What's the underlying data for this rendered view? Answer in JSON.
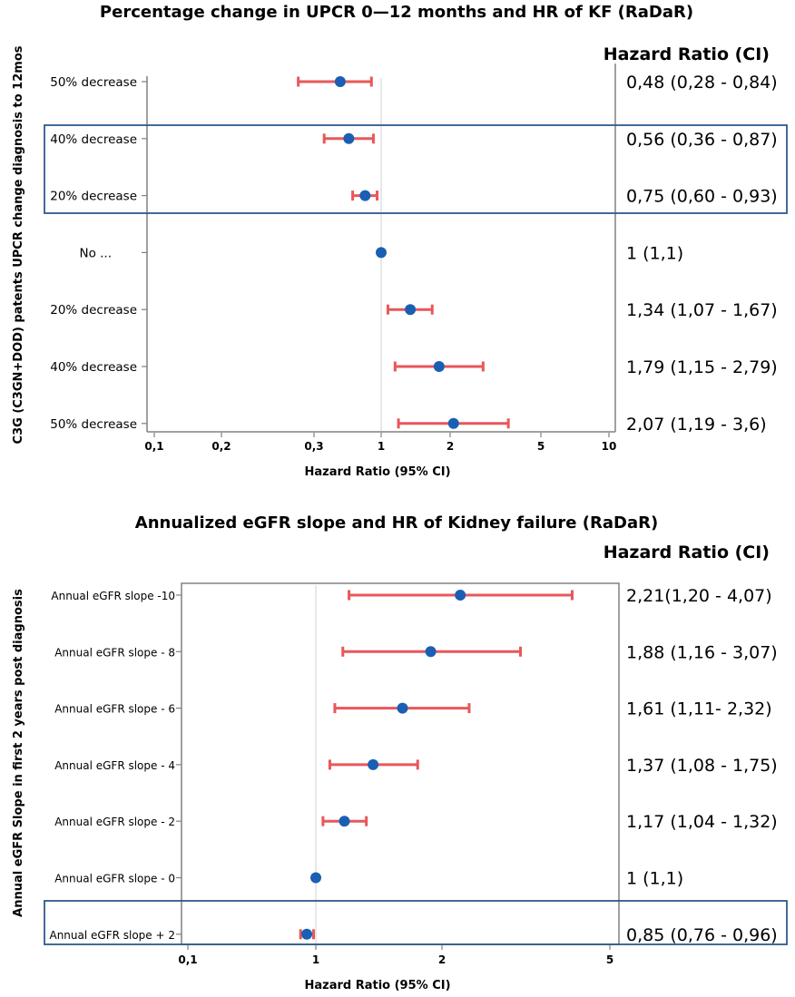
{
  "chart_data": [
    {
      "type": "forest",
      "title": "Percentage change in UPCR 0—12 months and HR of KF (RaDaR)",
      "hr_header": "Hazard Ratio (CI)",
      "xlabel": "Hazard Ratio (95% CI)",
      "ylabel": "C3G (C3GN+DOD) patents UPCR change diagnosis to 12mos",
      "x_ticks": [
        {
          "label": "0,1",
          "value": 0.1
        },
        {
          "label": "0,2",
          "value": 0.2
        },
        {
          "label": "0,3",
          "value": 0.3
        },
        {
          "label": "1",
          "value": 1
        },
        {
          "label": "2",
          "value": 2
        },
        {
          "label": "5",
          "value": 5
        },
        {
          "label": "10",
          "value": 10
        }
      ],
      "reference_line": 1,
      "rows": [
        {
          "label": "50% decrease",
          "hr": 0.48,
          "lo": 0.28,
          "hi": 0.84,
          "text": "0,48 (0,28 - 0,84)"
        },
        {
          "label": "40% decrease",
          "hr": 0.56,
          "lo": 0.36,
          "hi": 0.87,
          "text": "0,56 (0,36 - 0,87)"
        },
        {
          "label": "20% decrease",
          "hr": 0.75,
          "lo": 0.6,
          "hi": 0.93,
          "text": "0,75 (0,60 - 0,93)"
        },
        {
          "label": "No ...",
          "hr": 1,
          "lo": 1,
          "hi": 1,
          "text": "1 (1,1)"
        },
        {
          "label": "20% decrease",
          "hr": 1.34,
          "lo": 1.07,
          "hi": 1.67,
          "text": "1,34 (1,07 - 1,67)"
        },
        {
          "label": "40% decrease",
          "hr": 1.79,
          "lo": 1.15,
          "hi": 2.79,
          "text": "1,79 (1,15 - 2,79)"
        },
        {
          "label": "50% decrease",
          "hr": 2.07,
          "lo": 1.19,
          "hi": 3.6,
          "text": "2,07 (1,19 - 3,6)"
        }
      ],
      "highlighted_rows": [
        1,
        2
      ]
    },
    {
      "type": "forest",
      "title": "Annualized eGFR slope and HR of Kidney failure (RaDaR)",
      "hr_header": "Hazard Ratio (CI)",
      "xlabel": "Hazard Ratio (95% CI)",
      "ylabel": "Annual eGFR Slope in first 2 years post diagnosis",
      "x_ticks": [
        {
          "label": "0,1",
          "value": 0.1
        },
        {
          "label": "1",
          "value": 1
        },
        {
          "label": "2",
          "value": 2
        },
        {
          "label": "5",
          "value": 5
        }
      ],
      "reference_line": 1,
      "rows": [
        {
          "label": "Annual eGFR slope -10",
          "hr": 2.21,
          "lo": 1.2,
          "hi": 4.07,
          "text": "2,21(1,20 - 4,07)"
        },
        {
          "label": "Annual eGFR slope - 8",
          "hr": 1.88,
          "lo": 1.16,
          "hi": 3.07,
          "text": "1,88 (1,16 - 3,07)"
        },
        {
          "label": "Annual eGFR slope - 6",
          "hr": 1.61,
          "lo": 1.11,
          "hi": 2.32,
          "text": "1,61 (1,11- 2,32)"
        },
        {
          "label": "Annual eGFR slope - 4",
          "hr": 1.37,
          "lo": 1.08,
          "hi": 1.75,
          "text": "1,37 (1,08 - 1,75)"
        },
        {
          "label": "Annual eGFR slope - 2",
          "hr": 1.17,
          "lo": 1.04,
          "hi": 1.32,
          "text": "1,17 (1,04 - 1,32)"
        },
        {
          "label": "Annual eGFR slope - 0",
          "hr": 1,
          "lo": 1,
          "hi": 1,
          "text": "1 (1,1)"
        },
        {
          "label": "Annual eGFR slope + 2",
          "hr": 0.85,
          "lo": 0.76,
          "hi": 0.96,
          "text": "0,85 (0,76 - 0,96)"
        }
      ],
      "highlighted_rows": [
        6
      ]
    }
  ],
  "colors": {
    "point": "#1a5fb4",
    "ci": "#e8575a",
    "axis": "#808080",
    "reference": "#e6e6e6",
    "highlight": "#2f5a8a"
  }
}
